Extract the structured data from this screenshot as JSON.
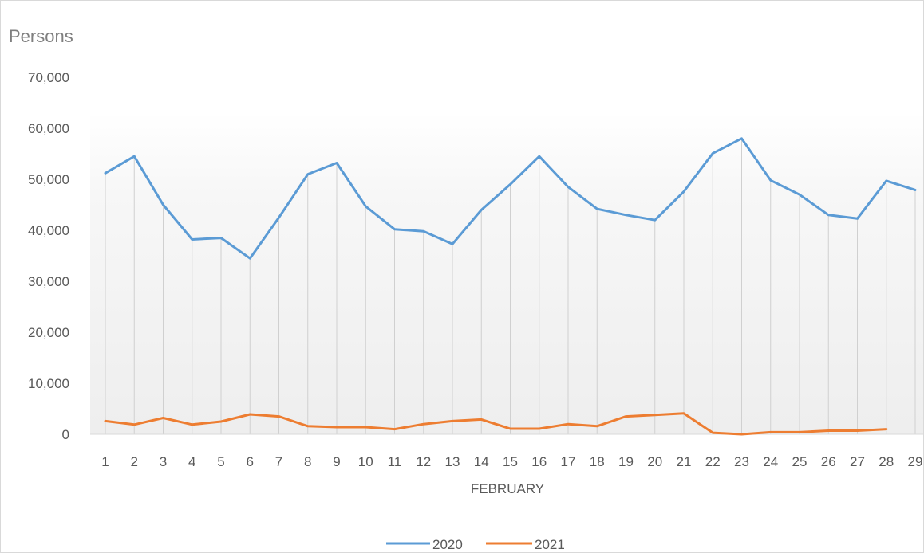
{
  "chart_data": {
    "type": "line",
    "ylabel": "Persons",
    "xlabel": "FEBRUARY",
    "ylim": [
      0,
      70000
    ],
    "yticks": [
      "70,000",
      "60,000",
      "50,000",
      "40,000",
      "30,000",
      "20,000",
      "10,000",
      "0"
    ],
    "ytick_values": [
      70000,
      60000,
      50000,
      40000,
      30000,
      20000,
      10000,
      0
    ],
    "categories": [
      "1",
      "2",
      "3",
      "4",
      "5",
      "6",
      "7",
      "8",
      "9",
      "10",
      "11",
      "12",
      "13",
      "14",
      "15",
      "16",
      "17",
      "18",
      "19",
      "20",
      "21",
      "22",
      "23",
      "24",
      "25",
      "26",
      "27",
      "28",
      "29"
    ],
    "grid": "vertical drop lines",
    "legend_position": "bottom",
    "series": [
      {
        "name": "2020",
        "color": "#5b9bd5",
        "values": [
          51200,
          54500,
          45000,
          38200,
          38500,
          34500,
          42500,
          51000,
          53200,
          44700,
          40200,
          39800,
          37300,
          44000,
          49000,
          54500,
          48500,
          44200,
          43000,
          42000,
          47600,
          55100,
          58000,
          49800,
          47000,
          43000,
          42300,
          49700,
          47900
        ]
      },
      {
        "name": "2021",
        "color": "#ed7d31",
        "values": [
          2600,
          1900,
          3200,
          1900,
          2500,
          3900,
          3500,
          1600,
          1400,
          1400,
          1000,
          2000,
          2600,
          2900,
          1100,
          1100,
          2000,
          1600,
          3500,
          3800,
          4100,
          300,
          0,
          400,
          400,
          700,
          700,
          1000,
          null
        ]
      }
    ]
  }
}
